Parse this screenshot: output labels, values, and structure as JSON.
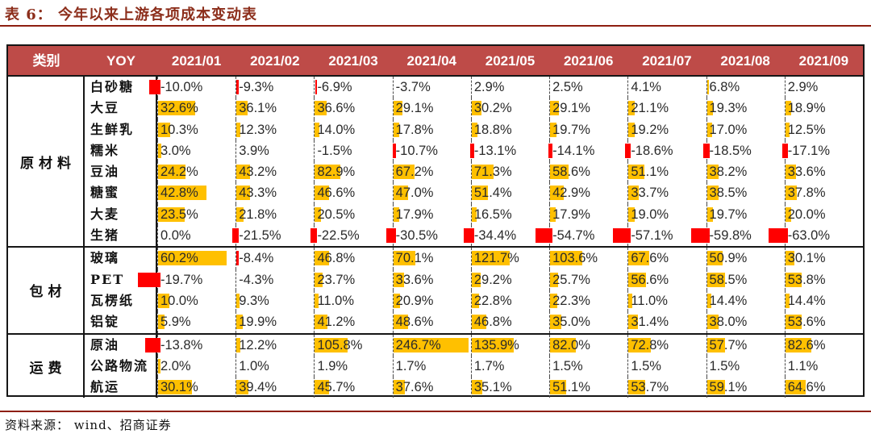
{
  "title": "表 6：  今年以来上游各项成本变动表",
  "source": "资料来源：  wind、招商证券",
  "colors": {
    "accent_rule": "#8E1F10",
    "title_text": "#8C2E1B",
    "header_bg": "#BE4B48",
    "header_text": "#FFFFFF",
    "positive_bar": "#FFC000",
    "negative_bar": "#FF0000"
  },
  "chart_data": {
    "type": "table",
    "title": "表 6: 今年以来上游各项成本变动表",
    "unit": "YOY %",
    "col_headers": [
      "类别",
      "YOY",
      "2021/01",
      "2021/02",
      "2021/03",
      "2021/04",
      "2021/05",
      "2021/06",
      "2021/07",
      "2021/08",
      "2021/09"
    ],
    "sections": [
      {
        "category": "原材料",
        "rows": [
          {
            "name": "白砂糖",
            "values": [
              -10.0,
              -9.3,
              -6.9,
              -3.7,
              2.9,
              2.5,
              4.1,
              6.8,
              2.9
            ]
          },
          {
            "name": "大豆",
            "values": [
              32.6,
              36.1,
              36.6,
              29.1,
              30.2,
              29.1,
              21.1,
              19.3,
              18.9
            ]
          },
          {
            "name": "生鲜乳",
            "values": [
              10.3,
              12.3,
              14.0,
              17.8,
              18.8,
              19.7,
              19.2,
              17.0,
              12.5
            ]
          },
          {
            "name": "糯米",
            "values": [
              3.0,
              3.9,
              -1.5,
              -10.7,
              -13.1,
              -14.1,
              -18.6,
              -18.5,
              -17.1
            ]
          },
          {
            "name": "豆油",
            "values": [
              24.2,
              43.2,
              82.9,
              67.2,
              71.3,
              58.6,
              51.1,
              38.2,
              33.6
            ]
          },
          {
            "name": "糖蜜",
            "values": [
              42.8,
              43.3,
              46.6,
              47.0,
              51.4,
              42.9,
              33.7,
              38.5,
              37.8
            ]
          },
          {
            "name": "大麦",
            "values": [
              23.5,
              21.8,
              20.5,
              17.9,
              16.5,
              17.9,
              19.0,
              19.7,
              20.0
            ]
          },
          {
            "name": "生猪",
            "values": [
              0.0,
              -21.5,
              -22.5,
              -30.5,
              -34.4,
              -54.7,
              -57.1,
              -59.8,
              -63.0
            ]
          }
        ]
      },
      {
        "category": "包材",
        "rows": [
          {
            "name": "玻璃",
            "values": [
              60.2,
              -8.4,
              46.8,
              70.1,
              121.7,
              103.6,
              67.6,
              50.9,
              30.1
            ]
          },
          {
            "name": "PET",
            "values": [
              -19.7,
              -4.3,
              23.7,
              33.6,
              29.2,
              25.7,
              56.6,
              58.5,
              53.8
            ]
          },
          {
            "name": "瓦楞纸",
            "values": [
              10.0,
              9.3,
              11.0,
              20.9,
              22.8,
              22.3,
              11.0,
              14.4,
              14.4
            ]
          },
          {
            "name": "铝锭",
            "values": [
              5.9,
              19.9,
              41.2,
              48.6,
              46.8,
              35.0,
              31.4,
              38.0,
              53.6
            ]
          }
        ]
      },
      {
        "category": "运费",
        "rows": [
          {
            "name": "原油",
            "values": [
              -13.8,
              12.2,
              105.8,
              246.7,
              135.9,
              82.0,
              72.8,
              57.7,
              82.6
            ]
          },
          {
            "name": "公路物流",
            "values": [
              2.0,
              1.0,
              1.9,
              1.7,
              1.7,
              1.5,
              1.5,
              1.5,
              1.1
            ]
          },
          {
            "name": "航运",
            "values": [
              30.1,
              39.4,
              45.7,
              37.6,
              35.1,
              51.1,
              53.7,
              59.1,
              64.6
            ]
          }
        ]
      }
    ],
    "legend_note": "orange bar = positive YOY, red bar = negative YOY; bar length proportional to magnitude"
  }
}
